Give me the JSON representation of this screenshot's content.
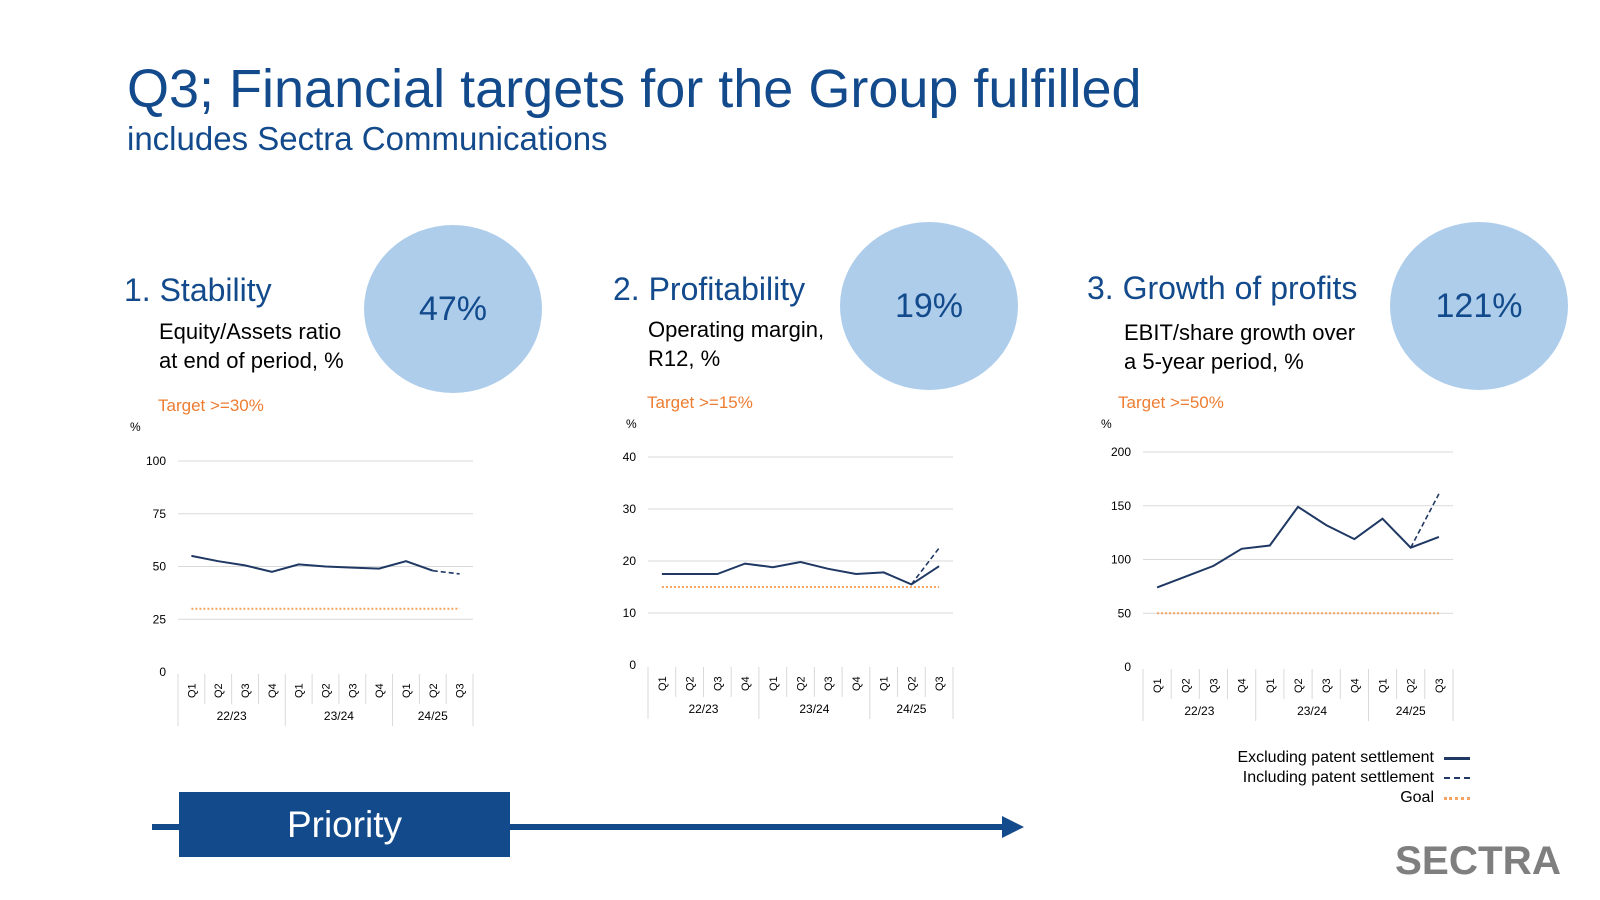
{
  "slide": {
    "title": "Q3; Financial targets for the Group fulfilled",
    "subtitle": "includes Sectra Communications"
  },
  "colors": {
    "brand_blue": "#124a8c",
    "series_line": "#1f3864",
    "goal_line": "#f4a460",
    "target_text": "#ed7d31",
    "circle_fill": "#adcdeb",
    "grid": "#d9d9d9",
    "logo_gray": "#7f7f7f"
  },
  "panels": [
    {
      "heading": "1. Stability",
      "description": [
        "Equity/Assets ratio",
        "at end of period, %"
      ],
      "target": "Target >=30%",
      "kpi": "47%"
    },
    {
      "heading": "2. Profitability",
      "description": [
        "Operating margin,",
        "R12, %"
      ],
      "target": "Target  >=15%",
      "kpi": "19%"
    },
    {
      "heading": "3. Growth of profits",
      "description": [
        "EBIT/share growth over",
        "a 5-year period, %"
      ],
      "target": "Target  >=50%",
      "kpi": "121%"
    }
  ],
  "chart_data": [
    {
      "type": "line",
      "title": "1. Stability",
      "ylabel": "%",
      "ylim": [
        0,
        100
      ],
      "yticks": [
        0,
        25,
        50,
        75,
        100
      ],
      "categories": [
        "Q1",
        "Q2",
        "Q3",
        "Q4",
        "Q1",
        "Q2",
        "Q3",
        "Q4",
        "Q1",
        "Q2",
        "Q3"
      ],
      "groups": [
        {
          "label": "22/23",
          "count": 4
        },
        {
          "label": "23/24",
          "count": 4
        },
        {
          "label": "24/25",
          "count": 3
        }
      ],
      "series": [
        {
          "name": "Excluding patent settlement",
          "style": "solid",
          "values": [
            55,
            52.5,
            50.5,
            47.5,
            51,
            50,
            49.5,
            49,
            52.5,
            48,
            null
          ]
        },
        {
          "name": "Including patent settlement",
          "style": "dashed",
          "values": [
            null,
            null,
            null,
            null,
            null,
            null,
            null,
            null,
            null,
            48,
            46.5
          ]
        },
        {
          "name": "Goal",
          "style": "dotted",
          "values": [
            30,
            30,
            30,
            30,
            30,
            30,
            30,
            30,
            30,
            30,
            30
          ]
        }
      ]
    },
    {
      "type": "line",
      "title": "2. Profitability",
      "ylabel": "%",
      "ylim": [
        0,
        40
      ],
      "yticks": [
        0,
        10,
        20,
        30,
        40
      ],
      "categories": [
        "Q1",
        "Q2",
        "Q3",
        "Q4",
        "Q1",
        "Q2",
        "Q3",
        "Q4",
        "Q1",
        "Q2",
        "Q3"
      ],
      "groups": [
        {
          "label": "22/23",
          "count": 4
        },
        {
          "label": "23/24",
          "count": 4
        },
        {
          "label": "24/25",
          "count": 3
        }
      ],
      "series": [
        {
          "name": "Excluding patent settlement",
          "style": "solid",
          "values": [
            17.5,
            17.5,
            17.5,
            19.5,
            18.8,
            19.8,
            18.5,
            17.5,
            17.8,
            15.5,
            19
          ]
        },
        {
          "name": "Including patent settlement",
          "style": "dashed",
          "values": [
            null,
            null,
            null,
            null,
            null,
            null,
            null,
            null,
            null,
            15.5,
            22.5
          ]
        },
        {
          "name": "Goal",
          "style": "dotted",
          "values": [
            15,
            15,
            15,
            15,
            15,
            15,
            15,
            15,
            15,
            15,
            15
          ]
        }
      ]
    },
    {
      "type": "line",
      "title": "3. Growth of profits",
      "ylabel": "%",
      "ylim": [
        0,
        200
      ],
      "yticks": [
        0,
        50,
        100,
        150,
        200
      ],
      "categories": [
        "Q1",
        "Q2",
        "Q3",
        "Q4",
        "Q1",
        "Q2",
        "Q3",
        "Q4",
        "Q1",
        "Q2",
        "Q3"
      ],
      "groups": [
        {
          "label": "22/23",
          "count": 4
        },
        {
          "label": "23/24",
          "count": 4
        },
        {
          "label": "24/25",
          "count": 3
        }
      ],
      "series": [
        {
          "name": "Excluding patent settlement",
          "style": "solid",
          "values": [
            74,
            84,
            94,
            110,
            113,
            149,
            132,
            119,
            138,
            111,
            121
          ]
        },
        {
          "name": "Including patent settlement",
          "style": "dashed",
          "values": [
            null,
            null,
            null,
            null,
            null,
            null,
            null,
            null,
            null,
            111,
            161
          ]
        },
        {
          "name": "Goal",
          "style": "dotted",
          "values": [
            50,
            50,
            50,
            50,
            50,
            50,
            50,
            50,
            50,
            50,
            50
          ]
        }
      ]
    }
  ],
  "legend": [
    {
      "label": "Excluding patent settlement",
      "style": "solid"
    },
    {
      "label": "Including patent settlement",
      "style": "dashed"
    },
    {
      "label": "Goal",
      "style": "dotted"
    }
  ],
  "priority_label": "Priority",
  "logo_text": "SECTRA"
}
